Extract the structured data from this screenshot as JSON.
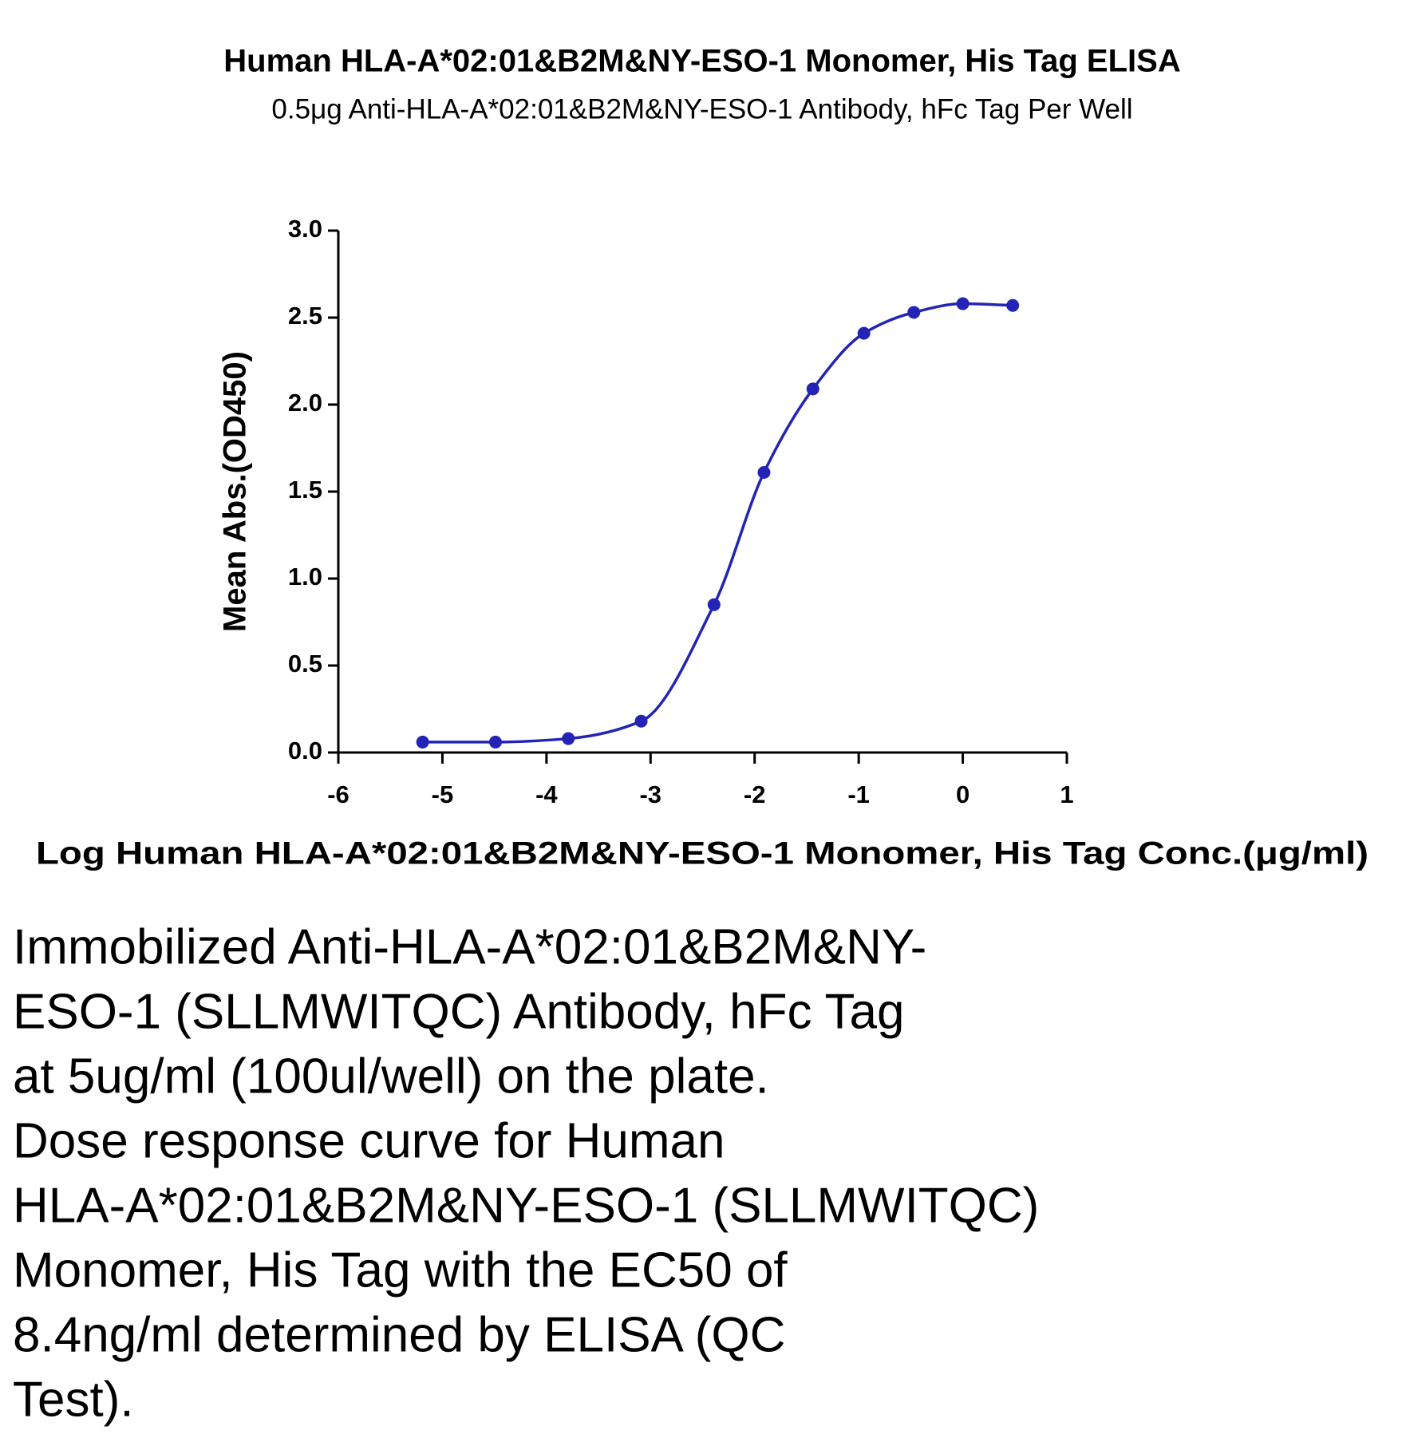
{
  "chart_data": {
    "type": "scatter",
    "title": "Human HLA-A*02:01&B2M&NY-ESO-1 Monomer, His Tag ELISA",
    "subtitle": "0.5μg Anti-HLA-A*02:01&B2M&NY-ESO-1 Antibody, hFc Tag Per Well",
    "x_label": "Log Human HLA-A*02:01&B2M&NY-ESO-1 Monomer, His Tag Conc.(μg/ml)",
    "y_label": "Mean Abs.(OD450)",
    "x": [
      -5.19,
      -4.49,
      -3.79,
      -3.09,
      -2.39,
      -1.91,
      -1.44,
      -0.95,
      -0.47,
      0.0,
      0.48
    ],
    "values": [
      0.06,
      0.06,
      0.08,
      0.18,
      0.85,
      1.61,
      2.09,
      2.41,
      2.53,
      2.58,
      2.57
    ],
    "color": "#2323b5",
    "xlim": [
      -6,
      1
    ],
    "xticks": [
      -6,
      -5,
      -4,
      -3,
      -2,
      -1,
      0,
      1
    ],
    "ylim": [
      0,
      3
    ],
    "yticks": [
      {
        "value": 0,
        "label": "0.0"
      },
      0.5,
      {
        "value": 1,
        "label": "1.0"
      },
      1.5,
      {
        "value": 2,
        "label": "2.0"
      },
      2.5,
      {
        "value": 3,
        "label": "3.0"
      }
    ]
  },
  "description": {
    "lines": [
      "Immobilized Anti-HLA-A*02:01&B2M&NY-",
      "ESO-1 (SLLMWITQC) Antibody, hFc Tag",
      "at 5ug/ml (100ul/well) on the plate.",
      "Dose response curve for Human",
      "HLA-A*02:01&B2M&NY-ESO-1 (SLLMWITQC)",
      "Monomer, His Tag with the EC50 of",
      "8.4ng/ml determined by ELISA (QC",
      "Test)."
    ]
  }
}
